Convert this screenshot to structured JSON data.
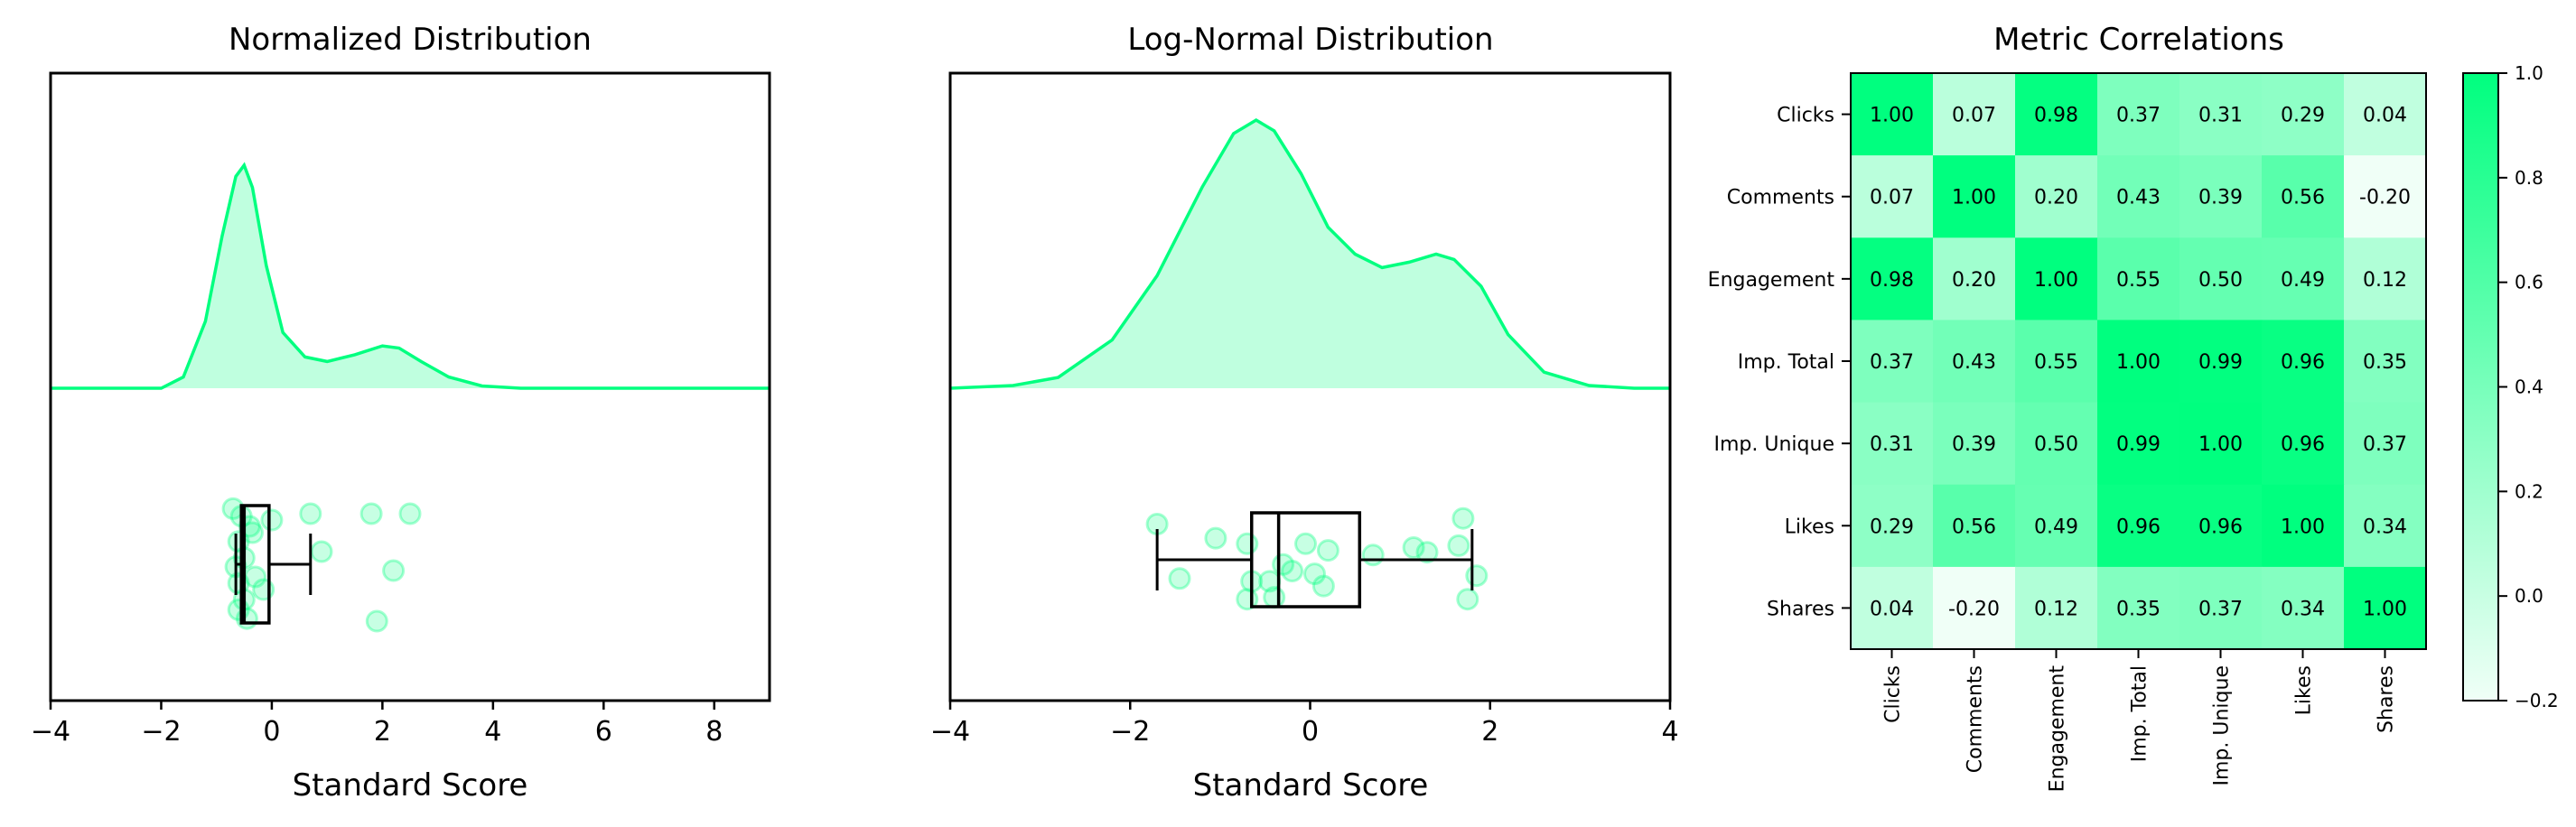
{
  "chart_data": [
    {
      "type": "violin_box",
      "title": "Normalized Distribution",
      "xlabel": "Standard Score",
      "xlim": [
        -4,
        9
      ],
      "xticks": [
        -4,
        -2,
        0,
        2,
        4,
        6,
        8
      ],
      "color": "#00FF7F",
      "density": [
        [
          -4.0,
          0
        ],
        [
          -2.0,
          0
        ],
        [
          -1.6,
          0.05
        ],
        [
          -1.2,
          0.3
        ],
        [
          -0.9,
          0.68
        ],
        [
          -0.65,
          0.95
        ],
        [
          -0.5,
          1.0
        ],
        [
          -0.35,
          0.9
        ],
        [
          -0.1,
          0.55
        ],
        [
          0.2,
          0.25
        ],
        [
          0.6,
          0.14
        ],
        [
          1.0,
          0.12
        ],
        [
          1.5,
          0.15
        ],
        [
          2.0,
          0.19
        ],
        [
          2.3,
          0.18
        ],
        [
          2.7,
          0.12
        ],
        [
          3.2,
          0.05
        ],
        [
          3.8,
          0.01
        ],
        [
          4.5,
          0
        ],
        [
          9.0,
          0
        ]
      ],
      "box": {
        "whisker_low": -0.65,
        "q1": -0.55,
        "median": -0.5,
        "q3": -0.05,
        "whisker_high": 0.7
      },
      "points": [
        [
          -0.7,
          0.06
        ],
        [
          -0.55,
          0.12
        ],
        [
          -0.6,
          0.32
        ],
        [
          -0.5,
          0.45
        ],
        [
          -0.65,
          0.52
        ],
        [
          -0.6,
          0.65
        ],
        [
          -0.5,
          0.78
        ],
        [
          -0.6,
          0.86
        ],
        [
          -0.45,
          0.93
        ],
        [
          -0.3,
          0.6
        ],
        [
          -0.35,
          0.25
        ],
        [
          0.0,
          0.15
        ],
        [
          0.7,
          0.1
        ],
        [
          0.9,
          0.4
        ],
        [
          1.9,
          0.95
        ],
        [
          2.2,
          0.55
        ],
        [
          1.8,
          0.1
        ],
        [
          2.5,
          0.1
        ],
        [
          -0.15,
          0.7
        ],
        [
          -0.4,
          0.2
        ]
      ]
    },
    {
      "type": "violin_box",
      "title": "Log-Normal Distribution",
      "xlabel": "Standard Score",
      "xlim": [
        -4,
        4
      ],
      "xticks": [
        -4,
        -2,
        0,
        2,
        4
      ],
      "color": "#00FF7F",
      "density": [
        [
          -4.0,
          0
        ],
        [
          -3.3,
          0.01
        ],
        [
          -2.8,
          0.04
        ],
        [
          -2.2,
          0.18
        ],
        [
          -1.7,
          0.42
        ],
        [
          -1.2,
          0.75
        ],
        [
          -0.85,
          0.95
        ],
        [
          -0.6,
          1.0
        ],
        [
          -0.4,
          0.96
        ],
        [
          -0.1,
          0.8
        ],
        [
          0.2,
          0.6
        ],
        [
          0.5,
          0.5
        ],
        [
          0.8,
          0.45
        ],
        [
          1.1,
          0.47
        ],
        [
          1.4,
          0.5
        ],
        [
          1.6,
          0.48
        ],
        [
          1.9,
          0.38
        ],
        [
          2.2,
          0.2
        ],
        [
          2.6,
          0.06
        ],
        [
          3.1,
          0.01
        ],
        [
          3.6,
          0
        ],
        [
          4.0,
          0
        ]
      ],
      "box": {
        "whisker_low": -1.7,
        "q1": -0.65,
        "median": -0.35,
        "q3": 0.55,
        "whisker_high": 1.8
      },
      "points": [
        [
          -1.7,
          0.12
        ],
        [
          -1.45,
          0.7
        ],
        [
          -1.05,
          0.27
        ],
        [
          -0.7,
          0.33
        ],
        [
          -0.7,
          0.92
        ],
        [
          -0.65,
          0.73
        ],
        [
          -0.45,
          0.73
        ],
        [
          -0.3,
          0.55
        ],
        [
          -0.4,
          0.9
        ],
        [
          -0.2,
          0.62
        ],
        [
          -0.05,
          0.33
        ],
        [
          0.05,
          0.65
        ],
        [
          0.15,
          0.78
        ],
        [
          0.2,
          0.4
        ],
        [
          0.7,
          0.45
        ],
        [
          1.15,
          0.37
        ],
        [
          1.3,
          0.42
        ],
        [
          1.65,
          0.35
        ],
        [
          1.7,
          0.06
        ],
        [
          1.75,
          0.92
        ],
        [
          1.85,
          0.67
        ]
      ]
    },
    {
      "type": "heatmap",
      "title": "Metric Correlations",
      "labels": [
        "Clicks",
        "Comments",
        "Engagement",
        "Imp. Total",
        "Imp. Unique",
        "Likes",
        "Shares"
      ],
      "matrix": [
        [
          "1.00",
          "0.07",
          "0.98",
          "0.37",
          "0.31",
          "0.29",
          "0.04"
        ],
        [
          "0.07",
          "1.00",
          "0.20",
          "0.43",
          "0.39",
          "0.56",
          "-0.20"
        ],
        [
          "0.98",
          "0.20",
          "1.00",
          "0.55",
          "0.50",
          "0.49",
          "0.12"
        ],
        [
          "0.37",
          "0.43",
          "0.55",
          "1.00",
          "0.99",
          "0.96",
          "0.35"
        ],
        [
          "0.31",
          "0.39",
          "0.50",
          "0.99",
          "1.00",
          "0.96",
          "0.37"
        ],
        [
          "0.29",
          "0.56",
          "0.49",
          "0.96",
          "0.96",
          "1.00",
          "0.34"
        ],
        [
          "0.04",
          "-0.20",
          "0.12",
          "0.35",
          "0.37",
          "0.34",
          "1.00"
        ]
      ],
      "vmin": -0.2,
      "vmax": 1.0,
      "colorbar_ticks": [
        "1.0",
        "0.8",
        "0.6",
        "0.4",
        "0.2",
        "0.0",
        "−0.2"
      ],
      "colormap": [
        "#F0FFF7",
        "#00FF7F"
      ]
    }
  ]
}
